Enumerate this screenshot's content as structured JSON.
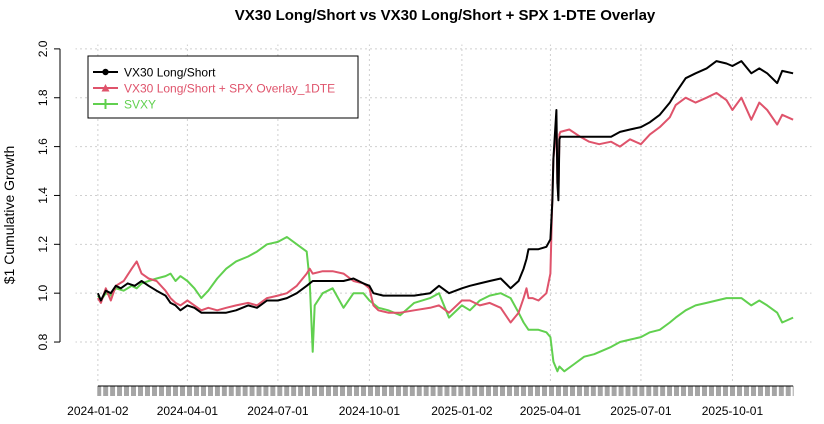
{
  "chart_data": {
    "type": "line",
    "title": "VX30 Long/Short vs VX30 Long/Short + SPX 1-DTE Overlay",
    "ylabel": "$1 Cumulative Growth",
    "xlabel": "",
    "xlim": [
      "2023-12-10",
      "2025-12-20"
    ],
    "ylim": [
      0.62,
      2.02
    ],
    "yticks": [
      0.8,
      1.0,
      1.2,
      1.4,
      1.6,
      1.8,
      2.0
    ],
    "yticklabels": [
      "0.8",
      "1.0",
      "1.2",
      "1.4",
      "1.6",
      "1.8",
      "2.0"
    ],
    "xticks": [
      "2024-01-02",
      "2024-04-01",
      "2024-07-01",
      "2024-10-01",
      "2025-01-02",
      "2025-04-01",
      "2025-07-01",
      "2025-10-01"
    ],
    "grid": true,
    "legend_position": "top-left",
    "series": [
      {
        "name": "VX30 Long/Short",
        "color": "#000000",
        "marker": "circle",
        "points": [
          [
            "2024-01-02",
            1.0
          ],
          [
            "2024-01-05",
            0.97
          ],
          [
            "2024-01-10",
            1.01
          ],
          [
            "2024-01-15",
            1.0
          ],
          [
            "2024-01-20",
            1.03
          ],
          [
            "2024-01-25",
            1.02
          ],
          [
            "2024-02-01",
            1.04
          ],
          [
            "2024-02-08",
            1.03
          ],
          [
            "2024-02-15",
            1.05
          ],
          [
            "2024-02-22",
            1.03
          ],
          [
            "2024-03-01",
            1.01
          ],
          [
            "2024-03-10",
            0.99
          ],
          [
            "2024-03-15",
            0.96
          ],
          [
            "2024-03-20",
            0.95
          ],
          [
            "2024-03-25",
            0.93
          ],
          [
            "2024-04-01",
            0.95
          ],
          [
            "2024-04-08",
            0.94
          ],
          [
            "2024-04-15",
            0.92
          ],
          [
            "2024-04-22",
            0.92
          ],
          [
            "2024-05-01",
            0.92
          ],
          [
            "2024-05-10",
            0.92
          ],
          [
            "2024-05-20",
            0.93
          ],
          [
            "2024-06-01",
            0.95
          ],
          [
            "2024-06-10",
            0.94
          ],
          [
            "2024-06-20",
            0.97
          ],
          [
            "2024-07-01",
            0.97
          ],
          [
            "2024-07-10",
            0.98
          ],
          [
            "2024-07-20",
            1.0
          ],
          [
            "2024-07-30",
            1.03
          ],
          [
            "2024-08-05",
            1.05
          ],
          [
            "2024-08-15",
            1.05
          ],
          [
            "2024-08-25",
            1.05
          ],
          [
            "2024-09-05",
            1.05
          ],
          [
            "2024-09-15",
            1.06
          ],
          [
            "2024-09-25",
            1.04
          ],
          [
            "2024-10-01",
            1.03
          ],
          [
            "2024-10-05",
            1.0
          ],
          [
            "2024-10-15",
            0.99
          ],
          [
            "2024-11-01",
            0.99
          ],
          [
            "2024-11-15",
            0.99
          ],
          [
            "2024-12-01",
            1.0
          ],
          [
            "2024-12-10",
            1.03
          ],
          [
            "2024-12-20",
            1.0
          ],
          [
            "2025-01-02",
            1.02
          ],
          [
            "2025-01-10",
            1.03
          ],
          [
            "2025-01-20",
            1.04
          ],
          [
            "2025-01-30",
            1.05
          ],
          [
            "2025-02-10",
            1.06
          ],
          [
            "2025-02-20",
            1.02
          ],
          [
            "2025-02-28",
            1.05
          ],
          [
            "2025-03-05",
            1.1
          ],
          [
            "2025-03-08",
            1.14
          ],
          [
            "2025-03-10",
            1.18
          ],
          [
            "2025-03-14",
            1.18
          ],
          [
            "2025-03-20",
            1.18
          ],
          [
            "2025-03-28",
            1.19
          ],
          [
            "2025-04-01",
            1.22
          ],
          [
            "2025-04-03",
            1.38
          ],
          [
            "2025-04-04",
            1.55
          ],
          [
            "2025-04-07",
            1.75
          ],
          [
            "2025-04-08",
            1.45
          ],
          [
            "2025-04-09",
            1.38
          ],
          [
            "2025-04-10",
            1.63
          ],
          [
            "2025-04-11",
            1.64
          ],
          [
            "2025-04-20",
            1.64
          ],
          [
            "2025-05-01",
            1.64
          ],
          [
            "2025-05-15",
            1.64
          ],
          [
            "2025-06-01",
            1.64
          ],
          [
            "2025-06-10",
            1.66
          ],
          [
            "2025-06-20",
            1.67
          ],
          [
            "2025-07-01",
            1.68
          ],
          [
            "2025-07-10",
            1.7
          ],
          [
            "2025-07-20",
            1.73
          ],
          [
            "2025-07-30",
            1.78
          ],
          [
            "2025-08-05",
            1.82
          ],
          [
            "2025-08-15",
            1.88
          ],
          [
            "2025-08-25",
            1.9
          ],
          [
            "2025-09-05",
            1.92
          ],
          [
            "2025-09-15",
            1.95
          ],
          [
            "2025-09-25",
            1.94
          ],
          [
            "2025-10-01",
            1.93
          ],
          [
            "2025-10-10",
            1.95
          ],
          [
            "2025-10-20",
            1.9
          ],
          [
            "2025-10-28",
            1.92
          ],
          [
            "2025-11-05",
            1.9
          ],
          [
            "2025-11-15",
            1.86
          ],
          [
            "2025-11-20",
            1.91
          ],
          [
            "2025-12-01",
            1.9
          ]
        ]
      },
      {
        "name": "VX30 Long/Short + SPX Overlay_1DTE",
        "color": "#DF536B",
        "marker": "triangle",
        "points": [
          [
            "2024-01-02",
            0.98
          ],
          [
            "2024-01-05",
            0.96
          ],
          [
            "2024-01-10",
            1.02
          ],
          [
            "2024-01-15",
            0.97
          ],
          [
            "2024-01-20",
            1.03
          ],
          [
            "2024-01-28",
            1.05
          ],
          [
            "2024-02-05",
            1.1
          ],
          [
            "2024-02-10",
            1.13
          ],
          [
            "2024-02-15",
            1.08
          ],
          [
            "2024-02-22",
            1.06
          ],
          [
            "2024-03-01",
            1.05
          ],
          [
            "2024-03-10",
            1.01
          ],
          [
            "2024-03-15",
            0.98
          ],
          [
            "2024-03-20",
            0.96
          ],
          [
            "2024-03-25",
            0.95
          ],
          [
            "2024-04-01",
            0.97
          ],
          [
            "2024-04-08",
            0.95
          ],
          [
            "2024-04-15",
            0.93
          ],
          [
            "2024-04-22",
            0.94
          ],
          [
            "2024-05-01",
            0.93
          ],
          [
            "2024-05-10",
            0.94
          ],
          [
            "2024-05-20",
            0.95
          ],
          [
            "2024-06-01",
            0.96
          ],
          [
            "2024-06-10",
            0.95
          ],
          [
            "2024-06-20",
            0.98
          ],
          [
            "2024-07-01",
            0.99
          ],
          [
            "2024-07-10",
            1.0
          ],
          [
            "2024-07-20",
            1.03
          ],
          [
            "2024-07-30",
            1.08
          ],
          [
            "2024-08-02",
            1.1
          ],
          [
            "2024-08-05",
            1.08
          ],
          [
            "2024-08-15",
            1.09
          ],
          [
            "2024-08-25",
            1.09
          ],
          [
            "2024-09-05",
            1.08
          ],
          [
            "2024-09-15",
            1.05
          ],
          [
            "2024-09-25",
            1.04
          ],
          [
            "2024-10-01",
            1.02
          ],
          [
            "2024-10-05",
            0.95
          ],
          [
            "2024-10-10",
            0.93
          ],
          [
            "2024-10-20",
            0.92
          ],
          [
            "2024-11-01",
            0.92
          ],
          [
            "2024-11-15",
            0.93
          ],
          [
            "2024-12-01",
            0.94
          ],
          [
            "2024-12-10",
            0.95
          ],
          [
            "2024-12-20",
            0.92
          ],
          [
            "2025-01-02",
            0.97
          ],
          [
            "2025-01-10",
            0.97
          ],
          [
            "2025-01-20",
            0.95
          ],
          [
            "2025-01-30",
            0.96
          ],
          [
            "2025-02-10",
            0.94
          ],
          [
            "2025-02-20",
            0.88
          ],
          [
            "2025-02-28",
            0.92
          ],
          [
            "2025-03-05",
            0.98
          ],
          [
            "2025-03-08",
            1.02
          ],
          [
            "2025-03-10",
            0.98
          ],
          [
            "2025-03-14",
            0.98
          ],
          [
            "2025-03-20",
            0.97
          ],
          [
            "2025-03-28",
            1.0
          ],
          [
            "2025-04-01",
            1.08
          ],
          [
            "2025-04-03",
            1.4
          ],
          [
            "2025-04-04",
            1.55
          ],
          [
            "2025-04-07",
            1.69
          ],
          [
            "2025-04-08",
            1.45
          ],
          [
            "2025-04-09",
            1.4
          ],
          [
            "2025-04-10",
            1.65
          ],
          [
            "2025-04-11",
            1.66
          ],
          [
            "2025-04-20",
            1.67
          ],
          [
            "2025-05-01",
            1.64
          ],
          [
            "2025-05-10",
            1.62
          ],
          [
            "2025-05-20",
            1.61
          ],
          [
            "2025-06-01",
            1.62
          ],
          [
            "2025-06-10",
            1.6
          ],
          [
            "2025-06-20",
            1.63
          ],
          [
            "2025-07-01",
            1.61
          ],
          [
            "2025-07-10",
            1.65
          ],
          [
            "2025-07-20",
            1.68
          ],
          [
            "2025-07-30",
            1.72
          ],
          [
            "2025-08-05",
            1.77
          ],
          [
            "2025-08-15",
            1.8
          ],
          [
            "2025-08-25",
            1.78
          ],
          [
            "2025-09-05",
            1.8
          ],
          [
            "2025-09-15",
            1.82
          ],
          [
            "2025-09-25",
            1.79
          ],
          [
            "2025-10-01",
            1.75
          ],
          [
            "2025-10-10",
            1.8
          ],
          [
            "2025-10-20",
            1.71
          ],
          [
            "2025-10-28",
            1.78
          ],
          [
            "2025-11-05",
            1.75
          ],
          [
            "2025-11-15",
            1.69
          ],
          [
            "2025-11-20",
            1.73
          ],
          [
            "2025-12-01",
            1.71
          ]
        ]
      },
      {
        "name": "SVXY",
        "color": "#61D04F",
        "marker": "plus",
        "points": [
          [
            "2024-01-02",
            0.99
          ],
          [
            "2024-01-05",
            0.97
          ],
          [
            "2024-01-10",
            1.0
          ],
          [
            "2024-01-15",
            0.99
          ],
          [
            "2024-01-20",
            1.02
          ],
          [
            "2024-01-28",
            1.01
          ],
          [
            "2024-02-05",
            1.03
          ],
          [
            "2024-02-10",
            1.02
          ],
          [
            "2024-02-15",
            1.04
          ],
          [
            "2024-02-22",
            1.05
          ],
          [
            "2024-03-01",
            1.06
          ],
          [
            "2024-03-10",
            1.07
          ],
          [
            "2024-03-15",
            1.08
          ],
          [
            "2024-03-20",
            1.05
          ],
          [
            "2024-03-25",
            1.07
          ],
          [
            "2024-04-01",
            1.05
          ],
          [
            "2024-04-08",
            1.02
          ],
          [
            "2024-04-15",
            0.98
          ],
          [
            "2024-04-22",
            1.01
          ],
          [
            "2024-05-01",
            1.06
          ],
          [
            "2024-05-10",
            1.1
          ],
          [
            "2024-05-20",
            1.13
          ],
          [
            "2024-06-01",
            1.15
          ],
          [
            "2024-06-10",
            1.17
          ],
          [
            "2024-06-20",
            1.2
          ],
          [
            "2024-07-01",
            1.21
          ],
          [
            "2024-07-10",
            1.23
          ],
          [
            "2024-07-20",
            1.2
          ],
          [
            "2024-07-30",
            1.17
          ],
          [
            "2024-08-02",
            1.05
          ],
          [
            "2024-08-05",
            0.76
          ],
          [
            "2024-08-07",
            0.95
          ],
          [
            "2024-08-15",
            1.0
          ],
          [
            "2024-08-25",
            1.02
          ],
          [
            "2024-09-05",
            0.94
          ],
          [
            "2024-09-15",
            1.0
          ],
          [
            "2024-09-25",
            1.0
          ],
          [
            "2024-10-01",
            0.97
          ],
          [
            "2024-10-10",
            0.94
          ],
          [
            "2024-10-20",
            0.93
          ],
          [
            "2024-11-01",
            0.91
          ],
          [
            "2024-11-15",
            0.96
          ],
          [
            "2024-12-01",
            0.98
          ],
          [
            "2024-12-10",
            1.0
          ],
          [
            "2024-12-20",
            0.9
          ],
          [
            "2025-01-02",
            0.95
          ],
          [
            "2025-01-10",
            0.93
          ],
          [
            "2025-01-20",
            0.97
          ],
          [
            "2025-01-30",
            0.99
          ],
          [
            "2025-02-10",
            1.0
          ],
          [
            "2025-02-20",
            0.98
          ],
          [
            "2025-02-28",
            0.92
          ],
          [
            "2025-03-05",
            0.88
          ],
          [
            "2025-03-10",
            0.85
          ],
          [
            "2025-03-20",
            0.85
          ],
          [
            "2025-03-28",
            0.84
          ],
          [
            "2025-04-01",
            0.82
          ],
          [
            "2025-04-04",
            0.72
          ],
          [
            "2025-04-08",
            0.68
          ],
          [
            "2025-04-10",
            0.7
          ],
          [
            "2025-04-15",
            0.68
          ],
          [
            "2025-04-25",
            0.71
          ],
          [
            "2025-05-05",
            0.74
          ],
          [
            "2025-05-15",
            0.75
          ],
          [
            "2025-06-01",
            0.78
          ],
          [
            "2025-06-10",
            0.8
          ],
          [
            "2025-06-20",
            0.81
          ],
          [
            "2025-07-01",
            0.82
          ],
          [
            "2025-07-10",
            0.84
          ],
          [
            "2025-07-20",
            0.85
          ],
          [
            "2025-07-30",
            0.88
          ],
          [
            "2025-08-05",
            0.9
          ],
          [
            "2025-08-15",
            0.93
          ],
          [
            "2025-08-25",
            0.95
          ],
          [
            "2025-09-05",
            0.96
          ],
          [
            "2025-09-15",
            0.97
          ],
          [
            "2025-09-25",
            0.98
          ],
          [
            "2025-10-01",
            0.98
          ],
          [
            "2025-10-10",
            0.98
          ],
          [
            "2025-10-20",
            0.95
          ],
          [
            "2025-10-28",
            0.97
          ],
          [
            "2025-11-05",
            0.95
          ],
          [
            "2025-11-15",
            0.92
          ],
          [
            "2025-11-20",
            0.88
          ],
          [
            "2025-12-01",
            0.9
          ]
        ]
      }
    ]
  }
}
